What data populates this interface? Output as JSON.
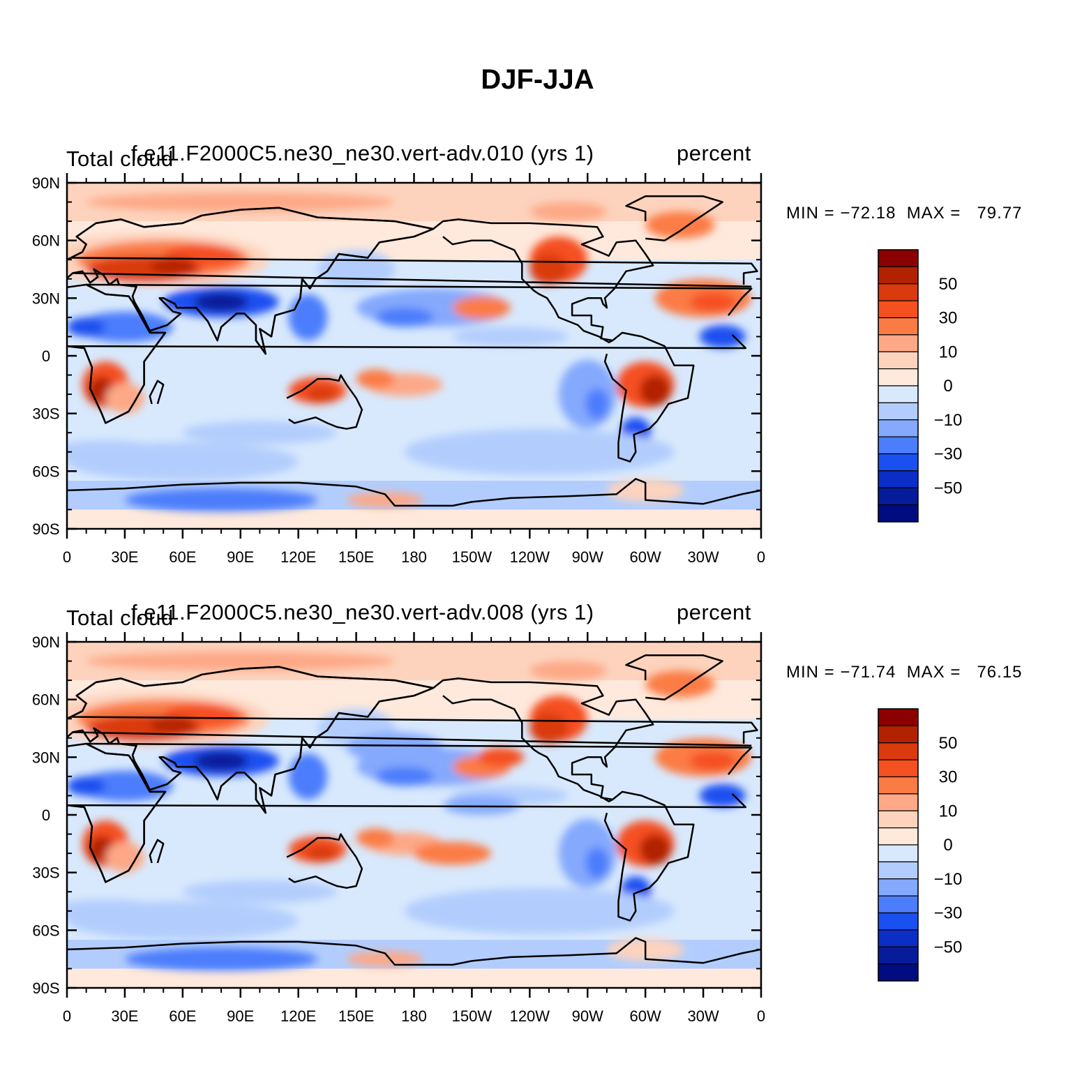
{
  "title": "DJF-JJA",
  "panels": [
    {
      "left_label": "Total cloud",
      "center_label": "f.e11.F2000C5.ne30_ne30.vert-adv.010 (yrs 1)",
      "right_label": "percent",
      "stats": "MIN = −72.18  MAX =   79.77",
      "min": -72.18,
      "max": 79.77
    },
    {
      "left_label": "Total cloud",
      "center_label": "f.e11.F2000C5.ne30_ne30.vert-adv.008 (yrs 1)",
      "right_label": "percent",
      "stats": "MIN = −71.74  MAX =   76.15",
      "min": -71.74,
      "max": 76.15
    }
  ],
  "axes": {
    "lat_labels": [
      "90N",
      "60N",
      "30N",
      "0",
      "30S",
      "60S",
      "90S"
    ],
    "lon_labels": [
      "0",
      "30E",
      "60E",
      "90E",
      "120E",
      "150E",
      "180",
      "150W",
      "120W",
      "90W",
      "60W",
      "30W",
      "0"
    ]
  },
  "colorbar": {
    "labels": [
      "50",
      "30",
      "10",
      "0",
      "−10",
      "−30",
      "−50"
    ],
    "colors": [
      "#8b0000",
      "#b22200",
      "#d93a0e",
      "#f55020",
      "#fb7b45",
      "#fda886",
      "#fdd3bd",
      "#fee9dc",
      "#d8e9fd",
      "#b2cdfd",
      "#84a9fd",
      "#4c7dfc",
      "#1a4ff0",
      "#0a2ec6",
      "#071c9a",
      "#000c80"
    ]
  },
  "colors": {
    "ocean_light_pos": "#fdd3bd",
    "ocean_light_neg": "#d8e9fd"
  }
}
